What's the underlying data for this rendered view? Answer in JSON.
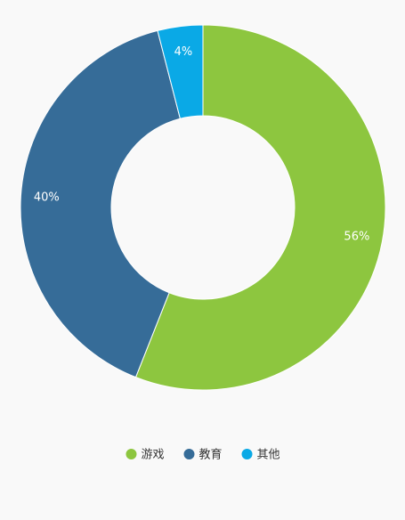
{
  "chart_data": {
    "type": "donut",
    "categories": [
      "游戏",
      "教育",
      "其他"
    ],
    "values": [
      56,
      40,
      4
    ],
    "value_labels": [
      "56%",
      "40%",
      "4%"
    ],
    "colors": [
      "#8dc63f",
      "#366c98",
      "#0aa9e6"
    ],
    "legend": "bottom"
  }
}
